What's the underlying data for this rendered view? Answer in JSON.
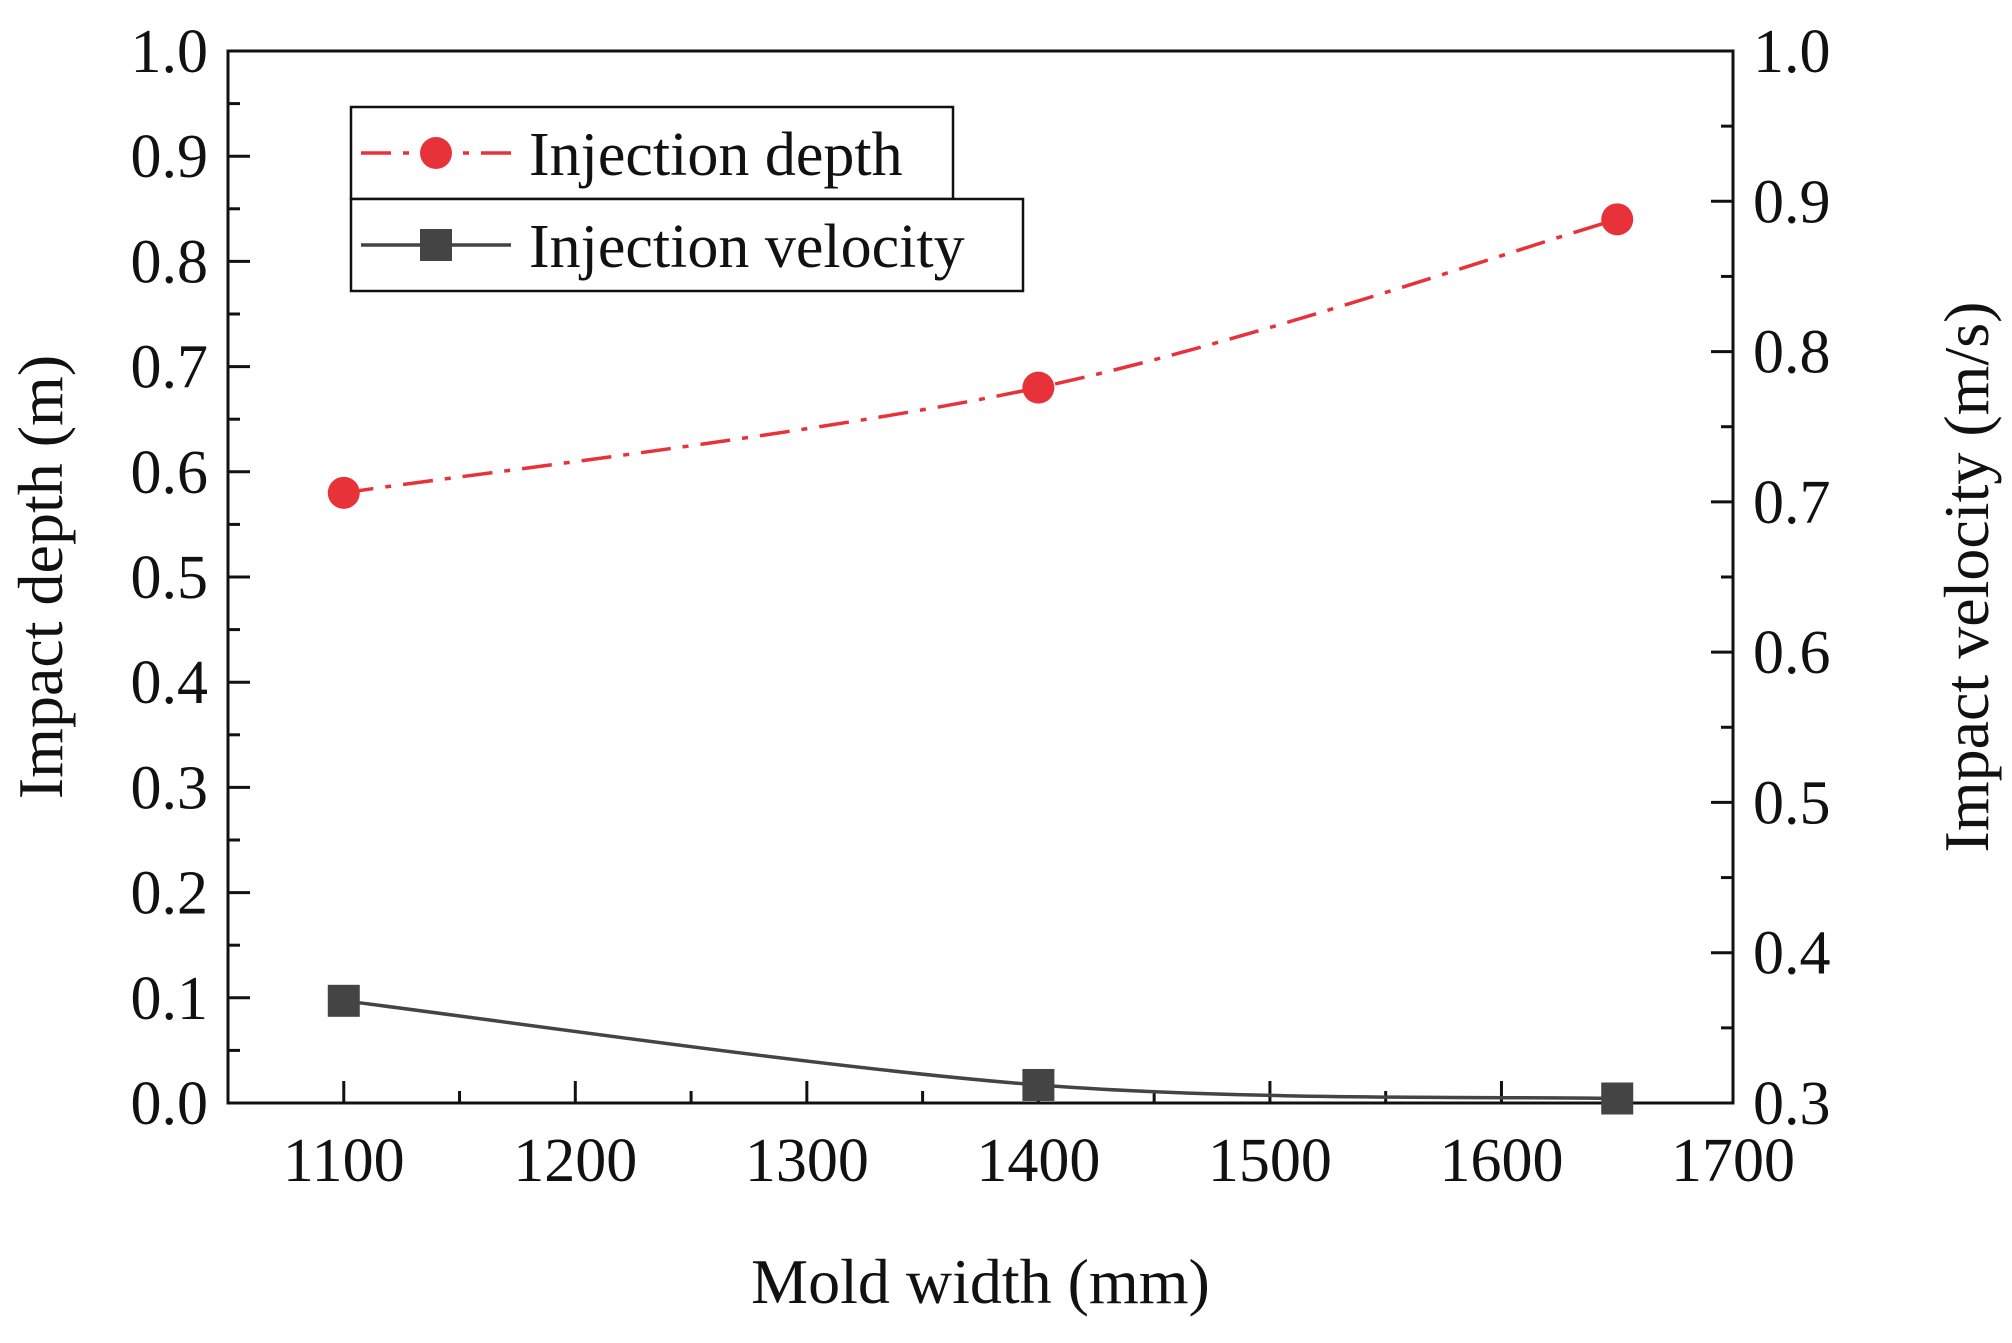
{
  "chart_data": {
    "type": "line",
    "title": "",
    "xlabel": "Mold width (mm)",
    "ylabel_left": "Impact depth (m)",
    "ylabel_right": "Impact velocity (m/s)",
    "xlim": [
      1050,
      1700
    ],
    "ylim_left": [
      0.0,
      1.0
    ],
    "ylim_right": [
      0.3,
      1.0
    ],
    "x_ticks": [
      1100,
      1200,
      1300,
      1400,
      1500,
      1600,
      1700
    ],
    "x_tick_labels": [
      "1100",
      "1200",
      "1300",
      "1400",
      "1500",
      "1600",
      "1700"
    ],
    "y_left_ticks": [
      0.0,
      0.1,
      0.2,
      0.3,
      0.4,
      0.5,
      0.6,
      0.7,
      0.8,
      0.9,
      1.0
    ],
    "y_left_tick_labels": [
      "0.0",
      "0.1",
      "0.2",
      "0.3",
      "0.4",
      "0.5",
      "0.6",
      "0.7",
      "0.8",
      "0.9",
      "1.0"
    ],
    "y_right_ticks": [
      0.3,
      0.4,
      0.5,
      0.6,
      0.7,
      0.8,
      0.9,
      1.0
    ],
    "y_right_tick_labels": [
      "0.3",
      "0.4",
      "0.5",
      "0.6",
      "0.7",
      "0.8",
      "0.9",
      "1.0"
    ],
    "grid": false,
    "legend_position": "top-left",
    "series": [
      {
        "name": "Injection depth",
        "axis": "left",
        "color": "#e8323a",
        "line_style": "dash-dot",
        "marker": "circle",
        "x": [
          1100,
          1400,
          1650
        ],
        "values": [
          0.58,
          0.68,
          0.84
        ]
      },
      {
        "name": "Injection velocity",
        "axis": "right",
        "color": "#444444",
        "line_style": "solid",
        "marker": "square",
        "x": [
          1100,
          1400,
          1650
        ],
        "values": [
          0.368,
          0.312,
          0.303
        ]
      }
    ]
  }
}
